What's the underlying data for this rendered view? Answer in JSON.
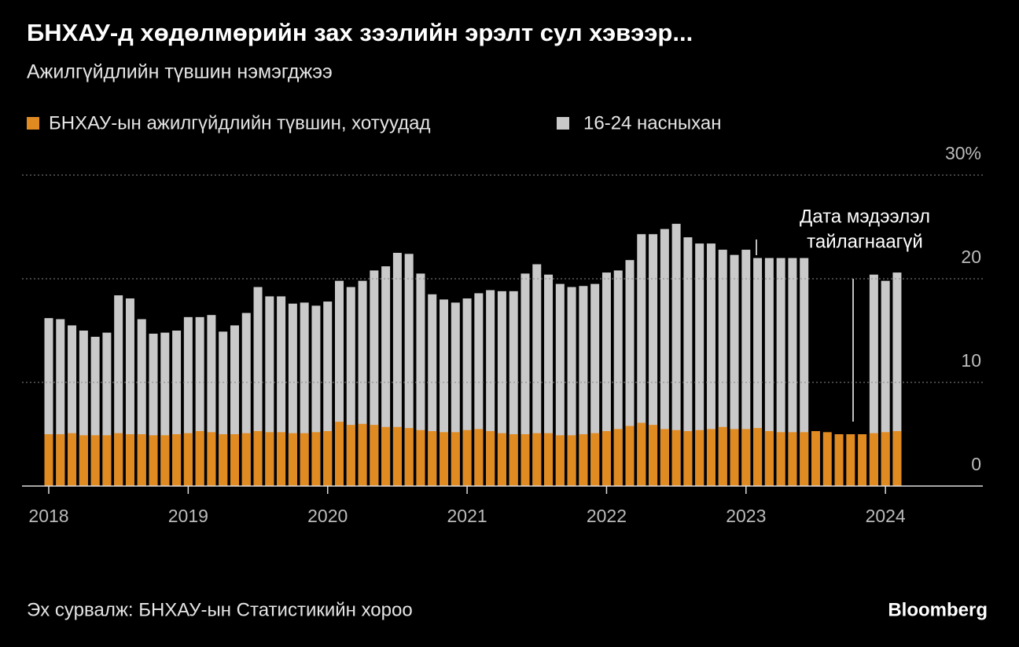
{
  "chart_data": {
    "type": "bar",
    "title": "БНХАУ-д хөдөлмөрийн зах зээлийн эрэлт сул хэвээр...",
    "subtitle": "Ажилгүйдлийн түвшин нэмэгджээ",
    "source": "Эх сурвалж: БНХАУ-ын Статистикийн хороо",
    "brand": "Bloomberg",
    "annotation": [
      "Дата мэдээлэл",
      "тайлагнаагүй"
    ],
    "categories": [
      "2018",
      null,
      null,
      null,
      null,
      null,
      null,
      null,
      null,
      null,
      null,
      null,
      "2019",
      null,
      null,
      null,
      null,
      null,
      null,
      null,
      null,
      null,
      null,
      null,
      "2020",
      null,
      null,
      null,
      null,
      null,
      null,
      null,
      null,
      null,
      null,
      null,
      "2021",
      null,
      null,
      null,
      null,
      null,
      null,
      null,
      null,
      null,
      null,
      null,
      "2022",
      null,
      null,
      null,
      null,
      null,
      null,
      null,
      null,
      null,
      null,
      null,
      "2023",
      null,
      null,
      null,
      null,
      null,
      null,
      null,
      null,
      null,
      null,
      null,
      "2024",
      null
    ],
    "series": [
      {
        "name": "16-24 насныхан",
        "color": "#c9c9c9",
        "values": [
          16.2,
          16.1,
          15.5,
          15.0,
          14.4,
          14.8,
          18.4,
          18.1,
          16.1,
          14.7,
          14.8,
          15.0,
          16.3,
          16.3,
          16.5,
          14.9,
          15.5,
          16.7,
          19.2,
          18.3,
          18.3,
          17.6,
          17.7,
          17.4,
          17.8,
          19.8,
          19.2,
          19.8,
          20.8,
          21.2,
          22.5,
          22.4,
          20.5,
          18.5,
          18.0,
          17.7,
          18.1,
          18.6,
          18.9,
          18.8,
          18.8,
          20.5,
          21.4,
          20.4,
          19.5,
          19.2,
          19.3,
          19.5,
          20.6,
          20.8,
          21.8,
          24.3,
          24.3,
          24.8,
          25.3,
          24.0,
          23.4,
          23.4,
          22.8,
          22.3,
          22.8,
          22.0,
          22.0,
          22.0,
          22.0,
          22.0,
          null,
          null,
          null,
          null,
          null,
          20.4,
          19.8,
          20.6
        ]
      },
      {
        "name": "БНХАУ-ын ажилгүйдлийн түвшин, хотуудад",
        "color": "#e08a22",
        "values": [
          5.0,
          5.0,
          5.1,
          4.9,
          4.9,
          4.9,
          5.1,
          5.0,
          5.0,
          4.9,
          4.9,
          5.0,
          5.1,
          5.3,
          5.2,
          5.0,
          5.0,
          5.1,
          5.3,
          5.2,
          5.2,
          5.1,
          5.1,
          5.2,
          5.3,
          6.2,
          5.9,
          6.0,
          5.9,
          5.7,
          5.7,
          5.6,
          5.4,
          5.3,
          5.2,
          5.2,
          5.4,
          5.5,
          5.3,
          5.1,
          5.0,
          5.0,
          5.1,
          5.1,
          4.9,
          4.9,
          5.0,
          5.1,
          5.3,
          5.5,
          5.8,
          6.1,
          5.9,
          5.5,
          5.4,
          5.3,
          5.4,
          5.5,
          5.7,
          5.5,
          5.5,
          5.6,
          5.3,
          5.2,
          5.2,
          5.2,
          5.3,
          5.2,
          5.0,
          5.0,
          5.0,
          5.1,
          5.2,
          5.3
        ]
      }
    ],
    "ylim": [
      0,
      30
    ],
    "yticks": [
      0,
      10,
      20,
      {
        "value": 30,
        "label": "30%"
      }
    ],
    "grid": true
  }
}
